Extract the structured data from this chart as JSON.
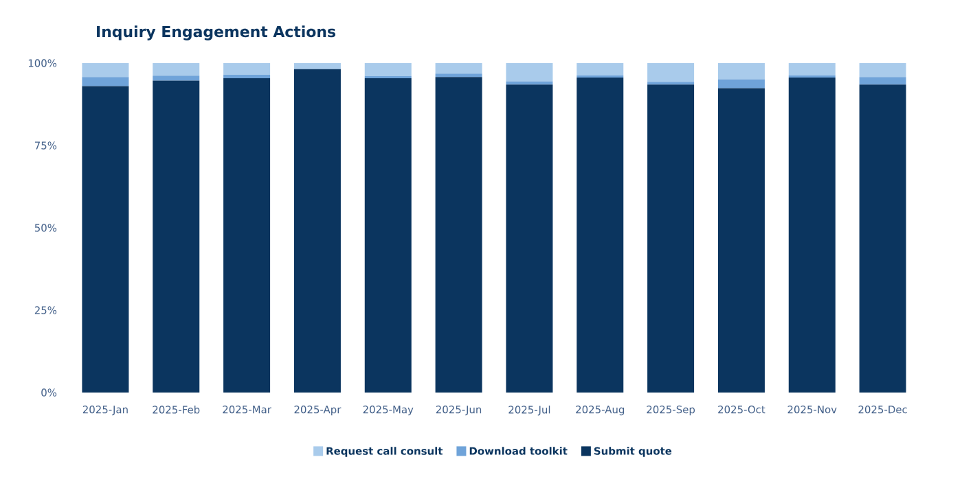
{
  "chart_data": {
    "type": "bar",
    "title": "Inquiry Engagement Actions",
    "stacked": true,
    "legend": "bottom",
    "categories": [
      "2025-Jan",
      "2025-Feb",
      "2025-Mar",
      "2025-Apr",
      "2025-May",
      "2025-Jun",
      "2025-Jul",
      "2025-Aug",
      "2025-Sep",
      "2025-Oct",
      "2025-Nov",
      "2025-Dec"
    ],
    "ylim": [
      0,
      100
    ],
    "yticks": [
      {
        "value": 0,
        "label": "0%"
      },
      {
        "value": 25,
        "label": "25%"
      },
      {
        "value": 50,
        "label": "50%"
      },
      {
        "value": 75,
        "label": "75%"
      },
      {
        "value": 100,
        "label": "100%"
      }
    ],
    "series": [
      {
        "name": "Submit quote",
        "color": "#0b355f",
        "values": [
          93.0,
          94.7,
          95.4,
          98.2,
          95.4,
          95.8,
          93.5,
          95.6,
          93.5,
          92.4,
          95.6,
          93.5
        ]
      },
      {
        "name": "Download toolkit",
        "color": "#6fa3d9",
        "values": [
          2.8,
          1.5,
          1.1,
          0,
          0.7,
          1.0,
          1.0,
          0.7,
          0.8,
          2.7,
          0.7,
          2.3
        ]
      },
      {
        "name": "Request call consult",
        "color": "#a9cbeb",
        "values": [
          4.2,
          3.8,
          3.5,
          1.8,
          3.9,
          3.2,
          5.5,
          3.7,
          5.7,
          4.9,
          3.7,
          4.2
        ]
      }
    ]
  }
}
